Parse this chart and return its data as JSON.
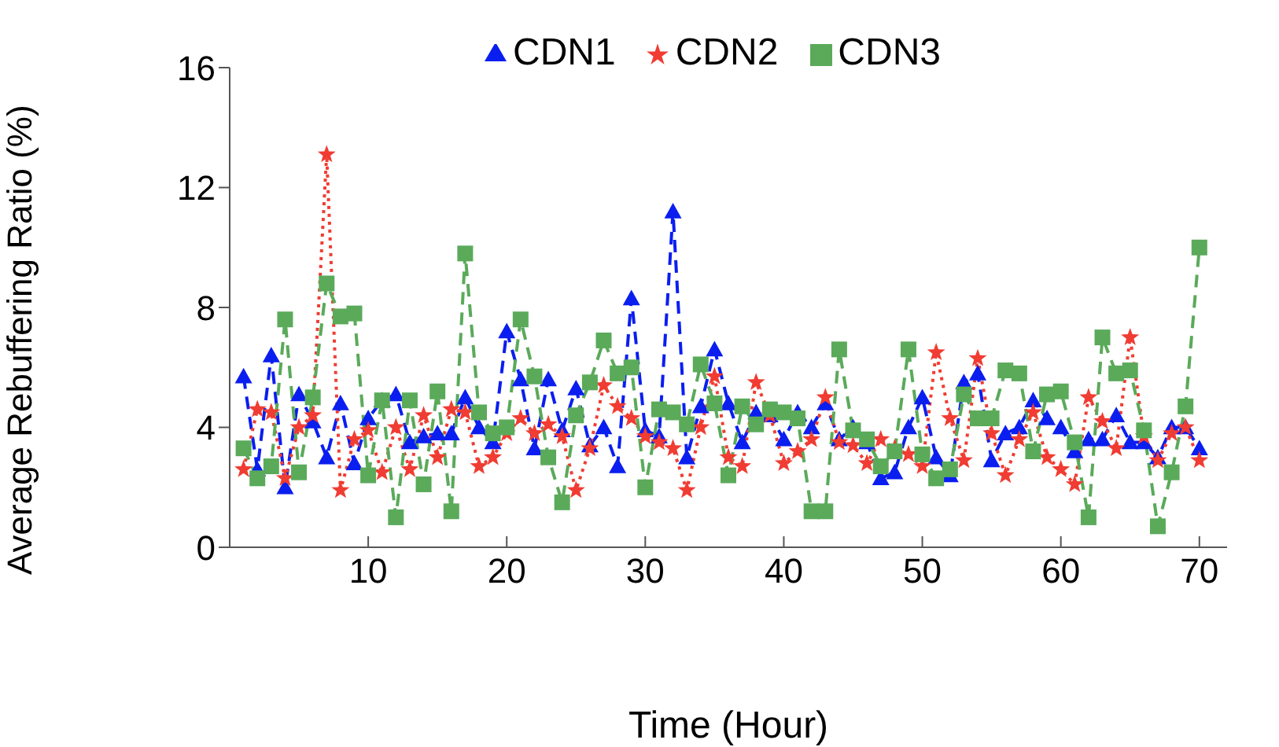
{
  "chart_data": {
    "type": "line",
    "xlabel": "Time (Hour)",
    "ylabel": "Average Rebuffering Ratio (%)",
    "x": [
      1,
      2,
      3,
      4,
      5,
      6,
      7,
      8,
      9,
      10,
      11,
      12,
      13,
      14,
      15,
      16,
      17,
      18,
      19,
      20,
      21,
      22,
      23,
      24,
      25,
      26,
      27,
      28,
      29,
      30,
      31,
      32,
      33,
      34,
      35,
      36,
      37,
      38,
      39,
      40,
      41,
      42,
      43,
      44,
      45,
      46,
      47,
      48,
      49,
      50,
      51,
      52,
      53,
      54,
      55,
      56,
      57,
      58,
      59,
      60,
      61,
      62,
      63,
      64,
      65,
      66,
      67,
      68,
      69,
      70
    ],
    "xlim": [
      0,
      72
    ],
    "xticks": [
      10,
      20,
      30,
      40,
      50,
      60,
      70
    ],
    "ylim": [
      0,
      16
    ],
    "yticks": [
      0,
      4,
      8,
      12,
      16
    ],
    "grid": false,
    "legend": "top",
    "series": [
      {
        "name": "CDN1",
        "color": "#0a1ef0",
        "marker": "triangle",
        "line_style": "dashed",
        "values": [
          5.7,
          2.6,
          6.4,
          2.0,
          5.1,
          4.2,
          3.0,
          4.8,
          2.8,
          4.3,
          4.9,
          5.1,
          3.5,
          3.7,
          3.8,
          3.8,
          5.0,
          4.0,
          3.5,
          7.2,
          5.6,
          3.3,
          5.6,
          3.9,
          5.3,
          3.4,
          4.0,
          2.7,
          8.3,
          3.9,
          3.7,
          11.2,
          3.0,
          4.7,
          6.6,
          4.8,
          3.5,
          4.5,
          4.4,
          3.6,
          4.5,
          4.0,
          4.8,
          3.6,
          4.0,
          3.5,
          2.3,
          2.5,
          4.0,
          5.0,
          3.0,
          2.4,
          5.5,
          5.8,
          2.9,
          3.8,
          4.0,
          4.9,
          4.3,
          4.0,
          3.2,
          3.6,
          3.6,
          4.4,
          3.5,
          3.5,
          3.0,
          4.0,
          4.0,
          3.3
        ]
      },
      {
        "name": "CDN2",
        "color": "#f03c32",
        "marker": "star",
        "line_style": "dotted",
        "values": [
          2.6,
          4.6,
          4.5,
          2.3,
          4.0,
          4.4,
          13.1,
          1.9,
          3.6,
          3.9,
          2.5,
          4.0,
          2.6,
          4.4,
          3.0,
          4.6,
          4.5,
          2.7,
          3.0,
          3.8,
          4.3,
          3.8,
          4.1,
          3.7,
          1.9,
          3.3,
          5.4,
          4.7,
          4.3,
          3.7,
          3.5,
          3.3,
          1.9,
          4.0,
          5.7,
          3.0,
          2.7,
          5.5,
          4.4,
          2.8,
          3.2,
          3.6,
          5.0,
          3.5,
          3.4,
          2.8,
          3.6,
          3.3,
          3.1,
          2.7,
          6.5,
          4.3,
          2.9,
          6.3,
          3.8,
          2.4,
          3.6,
          4.5,
          3.0,
          2.6,
          2.1,
          5.0,
          4.2,
          3.3,
          7.0,
          3.7,
          2.9,
          3.8,
          4.0,
          2.9
        ]
      },
      {
        "name": "CDN3",
        "color": "#5aaa5a",
        "marker": "square",
        "line_style": "dashed",
        "values": [
          3.3,
          2.3,
          2.7,
          7.6,
          2.5,
          5.0,
          8.8,
          7.7,
          7.8,
          2.4,
          4.9,
          1.0,
          4.9,
          2.1,
          5.2,
          1.2,
          9.8,
          4.5,
          3.8,
          4.0,
          7.6,
          5.7,
          3.0,
          1.5,
          4.4,
          5.5,
          6.9,
          5.8,
          6.0,
          2.0,
          4.6,
          4.5,
          4.1,
          6.1,
          4.8,
          2.4,
          4.7,
          4.1,
          4.6,
          4.5,
          4.3,
          1.2,
          1.2,
          6.6,
          3.9,
          3.6,
          2.7,
          3.2,
          6.6,
          3.1,
          2.3,
          2.6,
          5.1,
          4.3,
          4.3,
          5.9,
          5.8,
          3.2,
          5.1,
          5.2,
          3.5,
          1.0,
          7.0,
          5.8,
          5.9,
          3.9,
          0.7,
          2.5,
          4.7,
          10.0
        ]
      }
    ]
  }
}
